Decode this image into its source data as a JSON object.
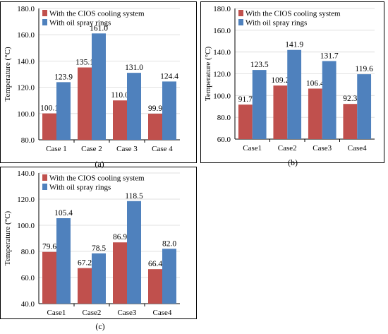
{
  "colors": {
    "cios": "#c0504d",
    "oil": "#4f81bd"
  },
  "chart_data": [
    {
      "type": "bar",
      "panel_label": "(a)",
      "ylabel": "Temperature (°C)",
      "categories": [
        "Case 1",
        "Case 2",
        "Case 3",
        "Case 4"
      ],
      "ylim": [
        80.0,
        180.0
      ],
      "yticks": [
        "80.0",
        "100.0",
        "120.0",
        "140.0",
        "160.0",
        "180.0"
      ],
      "series": [
        {
          "name": "With the CIOS cooling system",
          "values": [
            100.1,
            135.1,
            110.0,
            99.9
          ],
          "labels": [
            "100.1",
            "135.1",
            "110.0",
            "99.9"
          ]
        },
        {
          "name": "With oil spray rings",
          "values": [
            123.9,
            161.0,
            131.0,
            124.4
          ],
          "labels": [
            "123.9",
            "161.0",
            "131.0",
            "124.4"
          ]
        }
      ]
    },
    {
      "type": "bar",
      "panel_label": "(b)",
      "ylabel": "Temperature (°C)",
      "categories": [
        "Case1",
        "Case2",
        "Case3",
        "Case4"
      ],
      "ylim": [
        60.0,
        180.0
      ],
      "yticks": [
        "60.0",
        "80.0",
        "100.0",
        "120.0",
        "140.0",
        "160.0",
        "180.0"
      ],
      "series": [
        {
          "name": "With the CIOS cooling system",
          "values": [
            91.7,
            109.2,
            106.4,
            92.3
          ],
          "labels": [
            "91.7",
            "109.2",
            "106.4",
            "92.3"
          ]
        },
        {
          "name": "With oil spray rings",
          "values": [
            123.5,
            141.9,
            131.7,
            119.6
          ],
          "labels": [
            "123.5",
            "141.9",
            "131.7",
            "119.6"
          ]
        }
      ]
    },
    {
      "type": "bar",
      "panel_label": "(c)",
      "ylabel": "Temperature (°C)",
      "categories": [
        "Case1",
        "Case2",
        "Case3",
        "Case4"
      ],
      "ylim": [
        40.0,
        140.0
      ],
      "yticks": [
        "40.0",
        "60.0",
        "80.0",
        "100.0",
        "120.0",
        "140.0"
      ],
      "series": [
        {
          "name": "With the CIOS cooling system",
          "values": [
            79.6,
            67.2,
            86.9,
            66.4
          ],
          "labels": [
            "79.6",
            "67.2",
            "86.9",
            "66.4"
          ]
        },
        {
          "name": "With oil spray rings",
          "values": [
            105.4,
            78.5,
            118.5,
            82.0
          ],
          "labels": [
            "105.4",
            "78.5",
            "118.5",
            "82.0"
          ]
        }
      ]
    }
  ]
}
